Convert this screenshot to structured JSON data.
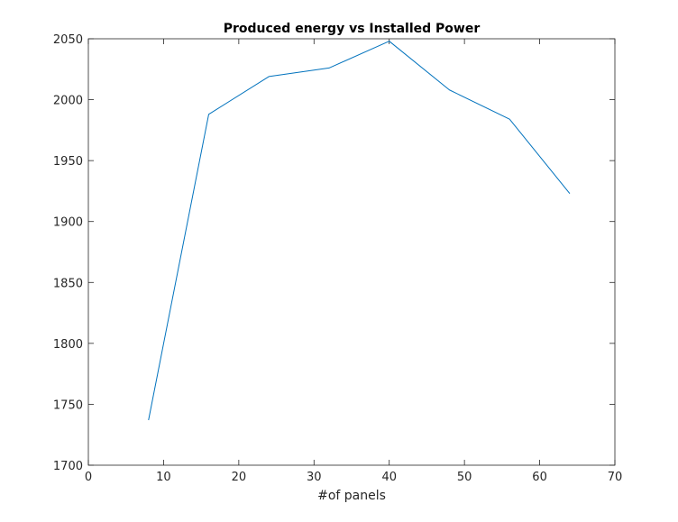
{
  "chart_data": {
    "type": "line",
    "title": "Produced energy vs Installed Power",
    "xlabel": "#of panels",
    "ylabel": "",
    "xlim": [
      0,
      70
    ],
    "ylim": [
      1700,
      2050
    ],
    "xticks": [
      0,
      10,
      20,
      30,
      40,
      50,
      60,
      70
    ],
    "yticks": [
      1700,
      1750,
      1800,
      1850,
      1900,
      1950,
      2000,
      2050
    ],
    "grid": false,
    "legend": "none",
    "series": [
      {
        "x": [
          8,
          16,
          24,
          32,
          40,
          48,
          56,
          64
        ],
        "y": [
          1737,
          1988,
          2019,
          2026,
          2048,
          2008,
          1984,
          1923
        ]
      }
    ],
    "colors": {
      "line": "#0072BD",
      "axes": "#262626",
      "background": "#ffffff"
    }
  }
}
